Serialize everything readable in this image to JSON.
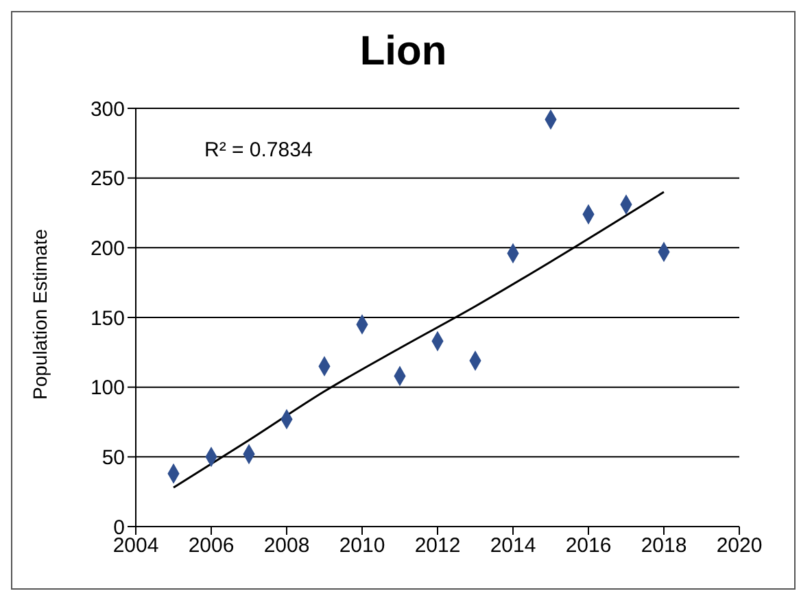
{
  "chart_data": {
    "type": "scatter",
    "title": "Lion",
    "ylabel": "Population Estimate",
    "annotations": [
      "R² = 0.7834"
    ],
    "x": [
      2005,
      2006,
      2007,
      2008,
      2009,
      2010,
      2011,
      2012,
      2013,
      2014,
      2015,
      2016,
      2017,
      2018
    ],
    "series": [
      {
        "color": "#2f4f8f",
        "values": [
          38,
          50,
          52,
          77,
          115,
          145,
          108,
          133,
          119,
          196,
          292,
          224,
          231,
          197
        ]
      },
      {
        "type": "line",
        "color": "#000000",
        "marker": "none",
        "x": [
          2005,
          2007,
          2009,
          2011,
          2013,
          2015,
          2018
        ],
        "values": [
          28,
          62,
          97,
          128,
          158,
          190,
          240
        ]
      }
    ],
    "xlim": [
      2004,
      2020
    ],
    "xticks": [
      2004,
      2006,
      2008,
      2010,
      2012,
      2014,
      2016,
      2018,
      2020
    ],
    "ylim": [
      0,
      300
    ],
    "yticks": [
      0,
      50,
      100,
      150,
      200,
      250,
      300
    ],
    "grid": "y",
    "marker": "diamond"
  }
}
